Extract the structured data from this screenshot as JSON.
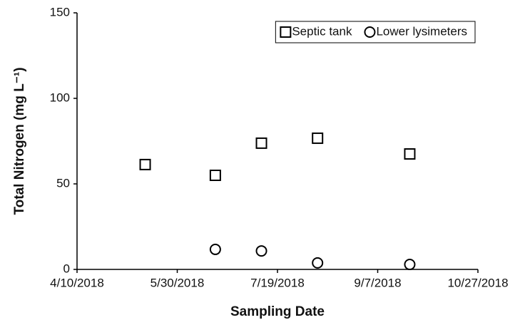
{
  "chart_data": {
    "type": "scatter",
    "x_label": "Sampling Date",
    "y_label": "Total Nitrogen (mg L⁻¹)",
    "xlim": [
      "4/10/2018",
      "10/27/2018"
    ],
    "xticks": [
      "4/10/2018",
      "5/30/2018",
      "7/19/2018",
      "9/7/2018",
      "10/27/2018"
    ],
    "ylim": [
      0,
      150
    ],
    "yticks": [
      0,
      50,
      100,
      150
    ],
    "legend": "upper right",
    "series": [
      {
        "name": "Septic tank",
        "marker": "square",
        "color": "#000000",
        "x": [
          "5/14/2018",
          "6/18/2018",
          "7/11/2018",
          "8/8/2018",
          "9/23/2018"
        ],
        "values": [
          61.3,
          55,
          73.8,
          76.7,
          67.5
        ]
      },
      {
        "name": "Lower lysimeters",
        "marker": "circle",
        "color": "#000000",
        "x": [
          "6/18/2018",
          "7/11/2018",
          "8/8/2018",
          "9/23/2018"
        ],
        "values": [
          11.7,
          10.8,
          3.8,
          2.9
        ]
      }
    ]
  }
}
